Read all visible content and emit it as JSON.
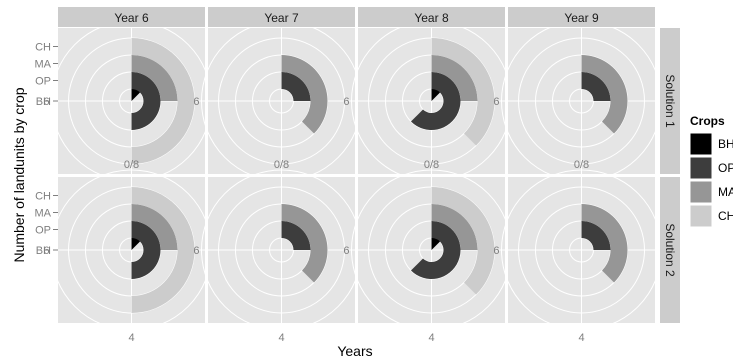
{
  "chart_data": {
    "type": "polar_bar",
    "ylabel": "Number of landunits by crop",
    "xlabel": "Years",
    "col_facets": [
      "Year 6",
      "Year 7",
      "Year 8",
      "Year 9"
    ],
    "row_facets": [
      "Solution 1",
      "Solution 2"
    ],
    "crop_levels": [
      "BH",
      "OP",
      "MA",
      "CH"
    ],
    "angle_ticks": [
      "0/8",
      "2",
      "4",
      "6"
    ],
    "theta_max": 8,
    "legend": {
      "title": "Crops",
      "position": "right",
      "items": [
        {
          "key": "BH",
          "label": "BH",
          "color": "#000000"
        },
        {
          "key": "OP",
          "label": "OP",
          "color": "#3d3d3d"
        },
        {
          "key": "MA",
          "label": "MA",
          "color": "#969696"
        },
        {
          "key": "CH",
          "label": "CH",
          "color": "#cccccc"
        }
      ]
    },
    "panels": [
      {
        "row": "Solution 1",
        "col": "Year 6",
        "values": {
          "BH": 1,
          "OP": 4,
          "MA": 2,
          "CH": 4
        }
      },
      {
        "row": "Solution 1",
        "col": "Year 7",
        "values": {
          "BH": 0,
          "OP": 2,
          "MA": 3,
          "CH": 0
        }
      },
      {
        "row": "Solution 1",
        "col": "Year 8",
        "values": {
          "BH": 1,
          "OP": 5,
          "MA": 2,
          "CH": 3
        }
      },
      {
        "row": "Solution 1",
        "col": "Year 9",
        "values": {
          "BH": 0,
          "OP": 2,
          "MA": 3,
          "CH": 0
        }
      },
      {
        "row": "Solution 2",
        "col": "Year 6",
        "values": {
          "BH": 1,
          "OP": 4,
          "MA": 2,
          "CH": 4
        }
      },
      {
        "row": "Solution 2",
        "col": "Year 7",
        "values": {
          "BH": 0,
          "OP": 2,
          "MA": 3,
          "CH": 0
        }
      },
      {
        "row": "Solution 2",
        "col": "Year 8",
        "values": {
          "BH": 1,
          "OP": 5,
          "MA": 2,
          "CH": 3
        }
      },
      {
        "row": "Solution 2",
        "col": "Year 9",
        "values": {
          "BH": 0,
          "OP": 2,
          "MA": 3,
          "CH": 0
        }
      }
    ]
  }
}
